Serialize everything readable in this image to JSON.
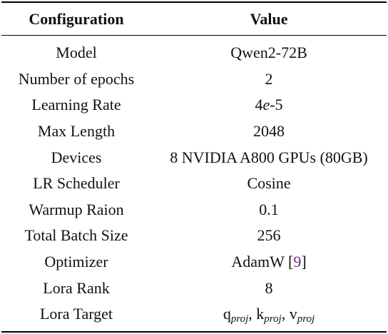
{
  "header": {
    "col_config": "Configuration",
    "col_value": "Value"
  },
  "rows": [
    {
      "config": "Model",
      "value": "Qwen2-72B"
    },
    {
      "config": "Number of epochs",
      "value": "2"
    },
    {
      "config": "Learning Rate",
      "value_base": "4",
      "value_exp_letter": "e",
      "value_exp": "-5"
    },
    {
      "config": "Max Length",
      "value": "2048"
    },
    {
      "config": "Devices",
      "value": "8 NVIDIA A800 GPUs (80GB)"
    },
    {
      "config": "LR Scheduler",
      "value": "Cosine"
    },
    {
      "config": "Warmup Raion",
      "value": "0.1"
    },
    {
      "config": "Total Batch Size",
      "value": "256"
    },
    {
      "config": "Optimizer",
      "value": "AdamW",
      "citation": "9"
    },
    {
      "config": "Lora Rank",
      "value": "8"
    },
    {
      "config": "Lora Target",
      "targets": [
        {
          "base": "q",
          "sub": "proj"
        },
        {
          "base": "k",
          "sub": "proj"
        },
        {
          "base": "v",
          "sub": "proj"
        }
      ]
    }
  ]
}
